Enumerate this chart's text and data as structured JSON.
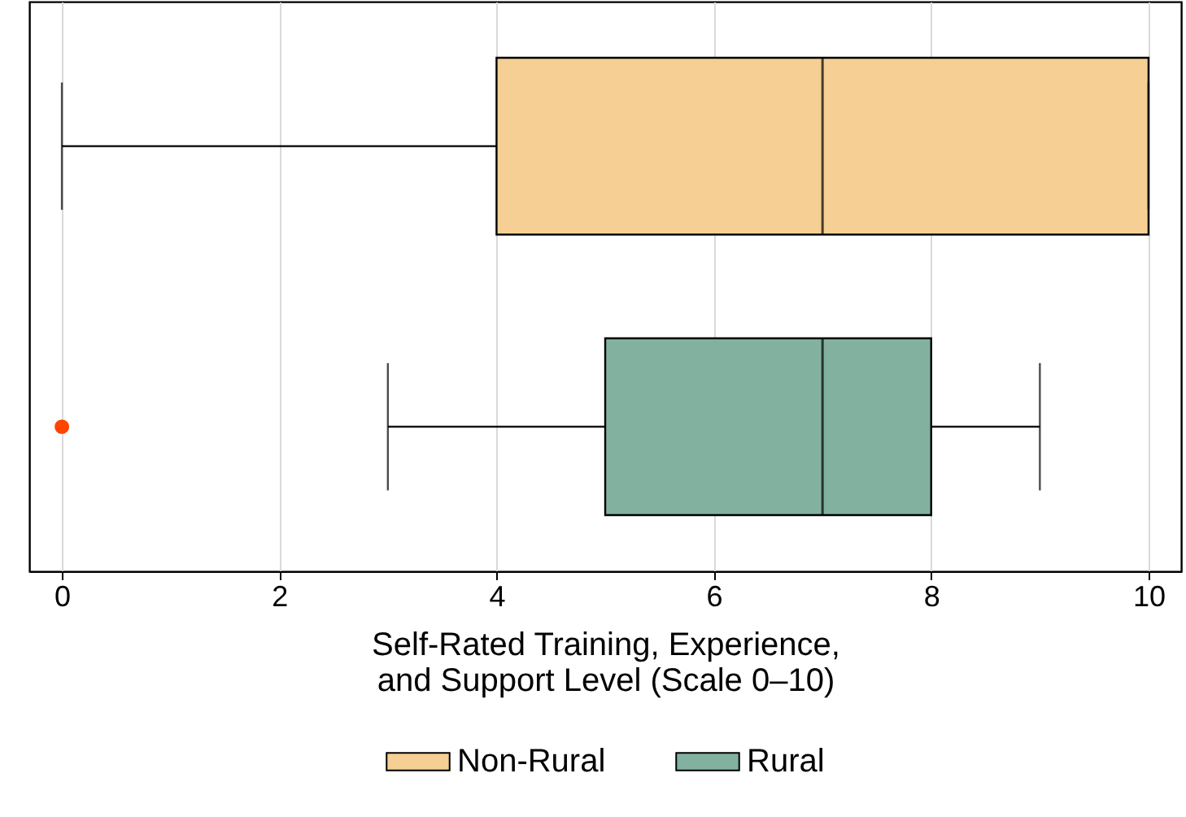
{
  "chart_data": {
    "type": "box",
    "orientation": "horizontal",
    "categories": [
      null
    ],
    "xlabel": "Self-Rated Training, Experience,\nand Support Level (Scale 0–10)",
    "series": [
      {
        "name": "Non-Rural",
        "color": "#f5cf93",
        "boxes": [
          {
            "low": 0,
            "q1": 4,
            "median": 7,
            "q3": 10,
            "high": 10
          }
        ]
      },
      {
        "name": "Rural",
        "color": "#82b1a0",
        "boxes": [
          {
            "low": 3,
            "q1": 5,
            "median": 7,
            "q3": 8,
            "high": 9,
            "outliers": [
              0
            ]
          }
        ]
      }
    ],
    "xlim": [
      -0.3,
      10.3
    ],
    "xticks": [
      0,
      2,
      4,
      6,
      8,
      10
    ],
    "grid": "x",
    "legend": "bottom",
    "tick_labels": "x"
  }
}
